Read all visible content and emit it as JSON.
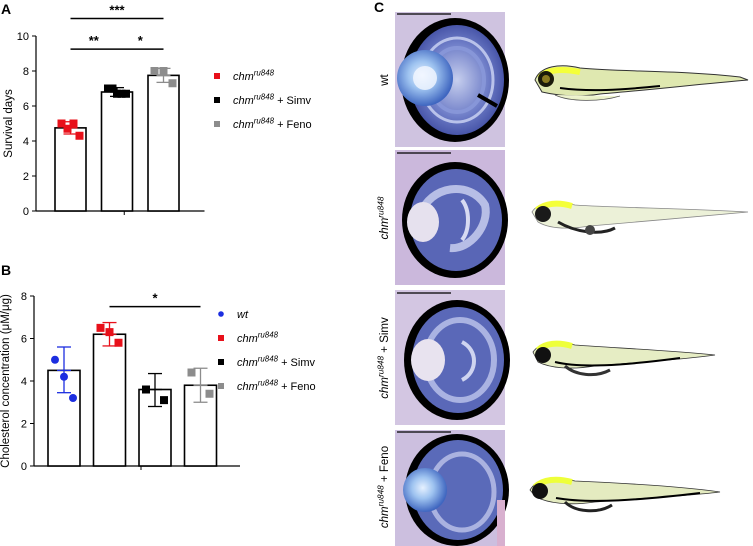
{
  "panels": {
    "a": {
      "letter": "A"
    },
    "b": {
      "letter": "B"
    },
    "c": {
      "letter": "C"
    }
  },
  "colors": {
    "red": "#e8101a",
    "black": "#000000",
    "gray": "#8c8c8c",
    "blue": "#1c2ee0"
  },
  "chart_data": [
    {
      "id": "A",
      "type": "bar",
      "ylabel": "Survival days",
      "ylim": [
        0,
        10
      ],
      "yticks": [
        0,
        2,
        4,
        6,
        8,
        10
      ],
      "groups": [
        {
          "legend_italic": "chm",
          "legend_sup": "ru848",
          "legend_suffix": "",
          "color": "#e8101a",
          "marker": "square",
          "mean": 4.75,
          "err": [
            4.4,
            5.1
          ],
          "points": [
            5.0,
            4.7,
            5.0,
            4.3
          ]
        },
        {
          "legend_italic": "chm",
          "legend_sup": "ru848",
          "legend_suffix": " + Simv",
          "color": "#000000",
          "marker": "square",
          "mean": 6.8,
          "err": [
            6.55,
            7.05
          ],
          "points": [
            7.0,
            7.0,
            6.7,
            6.7,
            6.7
          ]
        },
        {
          "legend_italic": "chm",
          "legend_sup": "ru848",
          "legend_suffix": " + Feno",
          "color": "#8c8c8c",
          "marker": "square",
          "mean": 7.75,
          "err": [
            7.35,
            8.15
          ],
          "points": [
            8.0,
            8.0,
            7.3
          ]
        }
      ],
      "significance": [
        {
          "from": 0,
          "to": 2,
          "label": "***",
          "y": 11.0
        },
        {
          "from": 0,
          "to": 1,
          "label": "**",
          "y": 9.25
        },
        {
          "from": 1,
          "to": 2,
          "label": "*",
          "y": 9.25
        }
      ]
    },
    {
      "id": "B",
      "type": "bar",
      "ylabel": "Cholesterol concentration (μM/μg)",
      "ylim": [
        0,
        8
      ],
      "yticks": [
        0,
        2,
        4,
        6,
        8
      ],
      "groups": [
        {
          "legend_italic": "wt",
          "legend_sup": "",
          "legend_suffix": "",
          "color": "#1c2ee0",
          "marker": "circle",
          "mean": 4.5,
          "err": [
            3.45,
            5.6
          ],
          "points": [
            5.0,
            4.2,
            3.2
          ]
        },
        {
          "legend_italic": "chm",
          "legend_sup": "ru848",
          "legend_suffix": "",
          "color": "#e8101a",
          "marker": "square",
          "mean": 6.2,
          "err": [
            5.65,
            6.75
          ],
          "points": [
            6.5,
            6.3,
            5.8
          ]
        },
        {
          "legend_italic": "chm",
          "legend_sup": "ru848",
          "legend_suffix": " + Simv",
          "color": "#000000",
          "marker": "square",
          "mean": 3.6,
          "err": [
            2.8,
            4.35
          ],
          "points": [
            3.6,
            3.1
          ]
        },
        {
          "legend_italic": "chm",
          "legend_sup": "ru848",
          "legend_suffix": " + Feno",
          "color": "#8c8c8c",
          "marker": "square",
          "mean": 3.8,
          "err": [
            3.0,
            4.6
          ],
          "points": [
            4.4,
            3.4
          ]
        }
      ],
      "significance": [
        {
          "from": 1,
          "to": 3,
          "label": "*",
          "y": 7.5
        }
      ]
    }
  ],
  "panel_c": {
    "rows": [
      {
        "label_italic": "",
        "label_sup": "",
        "label_suffix": "wt"
      },
      {
        "label_italic": "chm",
        "label_sup": "ru848",
        "label_suffix": ""
      },
      {
        "label_italic": "chm",
        "label_sup": "ru848",
        "label_suffix": " + Simv"
      },
      {
        "label_italic": "chm",
        "label_sup": "ru848",
        "label_suffix": " + Feno"
      }
    ]
  }
}
